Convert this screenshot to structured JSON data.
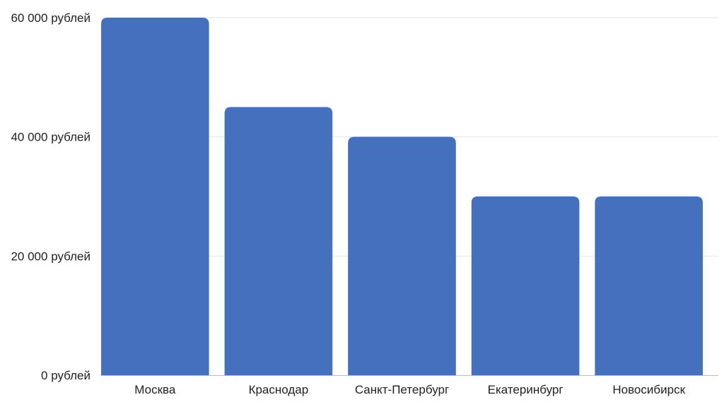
{
  "chart_data": {
    "type": "bar",
    "title": "",
    "xlabel": "",
    "ylabel": "",
    "categories": [
      "Москва",
      "Краснодар",
      "Санкт-Петербург",
      "Екатеринбург",
      "Новосибирск"
    ],
    "values": [
      60000,
      45000,
      40000,
      30000,
      30000
    ],
    "ylim": [
      0,
      60000
    ],
    "y_ticks": [
      0,
      20000,
      40000,
      60000
    ],
    "y_tick_labels": [
      "0 рублей",
      "20 000 рублей",
      "40 000 рублей",
      "60 000 рублей"
    ],
    "grid": true,
    "legend": "none",
    "bar_color": "#4470BE",
    "grid_color": "#E6E6E6",
    "axis_color": "#BDBDBD"
  }
}
